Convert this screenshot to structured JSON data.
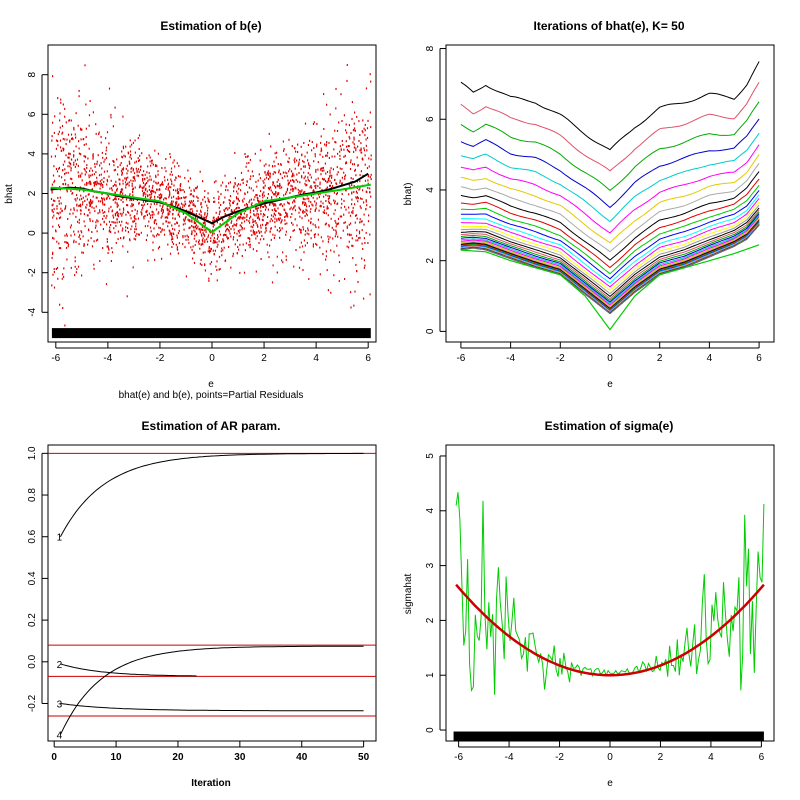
{
  "chart_data": [
    {
      "type": "scatter",
      "title": "Estimation of b(e)",
      "xlabel": "e",
      "ylabel": "bhat",
      "subtitle": "bhat(e) and b(e), points=Partial Residuals",
      "xlim": [
        -6.3,
        6.3
      ],
      "ylim": [
        -5.5,
        9.5
      ],
      "xticks": [
        -6,
        -4,
        -2,
        0,
        2,
        4,
        6
      ],
      "yticks": [
        -4,
        -2,
        0,
        2,
        4,
        6,
        8
      ],
      "points_color": "#e00000",
      "curves": [
        {
          "name": "bhat(e)",
          "color": "#000000",
          "x": [
            -6.2,
            -5.5,
            -5,
            -4.5,
            -4,
            -3.5,
            -3,
            -2.5,
            -2,
            -1.5,
            -1,
            -0.5,
            0,
            0.5,
            1,
            1.5,
            2,
            2.5,
            3,
            3.5,
            4,
            4.5,
            5,
            5.5,
            6
          ],
          "y": [
            2.2,
            2.3,
            2.25,
            2.1,
            2.0,
            1.85,
            1.75,
            1.65,
            1.55,
            1.35,
            1.1,
            0.8,
            0.5,
            0.85,
            1.1,
            1.3,
            1.5,
            1.65,
            1.8,
            1.95,
            2.05,
            2.2,
            2.4,
            2.6,
            3.0
          ]
        },
        {
          "name": "b(e)",
          "color": "#00cc00",
          "x": [
            -6.2,
            -5,
            -4,
            -3,
            -2,
            -1,
            0,
            1,
            2,
            3,
            4,
            5,
            6.1
          ],
          "y": [
            2.3,
            2.2,
            2.0,
            1.8,
            1.6,
            1.0,
            0.05,
            1.0,
            1.6,
            1.8,
            2.0,
            2.2,
            2.45
          ]
        }
      ],
      "rug_range": [
        -6.15,
        6.1
      ]
    },
    {
      "type": "line",
      "title": "Iterations of bhat(e), K= 50",
      "xlabel": "e",
      "ylabel": "bhat)",
      "xlim": [
        -6.6,
        6.6
      ],
      "ylim": [
        -0.3,
        8.1
      ],
      "xticks": [
        -6,
        -4,
        -2,
        0,
        2,
        4,
        6
      ],
      "yticks": [
        0,
        2,
        4,
        6,
        8
      ],
      "iterations": 50,
      "first_iteration": {
        "x": [
          -6,
          -5.5,
          -5,
          -4,
          -3,
          -2,
          -1,
          0,
          1,
          2,
          3,
          4,
          5,
          5.5,
          6
        ],
        "y": [
          7.0,
          6.75,
          7.0,
          6.6,
          6.5,
          6.1,
          5.6,
          5.1,
          5.8,
          6.3,
          6.5,
          6.7,
          6.6,
          7.0,
          7.6
        ]
      },
      "limit_curve": {
        "x": [
          -6,
          -5.5,
          -5,
          -4,
          -3,
          -2,
          -1,
          0,
          1,
          2,
          3,
          4,
          5,
          5.5,
          6
        ],
        "y": [
          2.3,
          2.35,
          2.3,
          2.05,
          1.8,
          1.6,
          1.05,
          0.5,
          1.1,
          1.6,
          1.8,
          2.1,
          2.4,
          2.6,
          3.0
        ]
      },
      "true_curve": {
        "color": "#00cc00",
        "x": [
          -6,
          -5,
          -4,
          -3,
          -2,
          -1,
          0,
          1,
          2,
          3,
          4,
          5,
          6
        ],
        "y": [
          2.3,
          2.25,
          2.0,
          1.8,
          1.6,
          1.0,
          0.05,
          1.0,
          1.6,
          1.8,
          2.0,
          2.2,
          2.45
        ]
      },
      "palette": [
        "#000000",
        "#df536b",
        "#00aa00",
        "#0000cc",
        "#00cccc",
        "#ff00ff",
        "#e6c800",
        "#aaaaaa",
        "#000000",
        "#e00000",
        "#00cc00",
        "#0000ff",
        "#00ffff",
        "#ff00ff",
        "#ffff00",
        "#999999"
      ]
    },
    {
      "type": "line",
      "title": "Estimation of AR param.",
      "xlabel": "Iteration",
      "ylabel": "",
      "xlim": [
        -1,
        52
      ],
      "ylim": [
        -0.38,
        1.04
      ],
      "xticks": [
        0,
        10,
        20,
        30,
        40,
        50
      ],
      "yticks": [
        -0.2,
        0.0,
        0.2,
        0.4,
        0.6,
        0.8,
        1.0
      ],
      "hlines": [
        1.0,
        0.08,
        -0.07,
        -0.26
      ],
      "hline_color": "#cc0000",
      "series": [
        {
          "name": "1",
          "start": 0.6,
          "end": 1.0,
          "rate": 0.14,
          "until": 50
        },
        {
          "name": "2",
          "start": -0.01,
          "end": -0.07,
          "rate": 0.15,
          "until": 23
        },
        {
          "name": "3",
          "start": -0.2,
          "end": -0.235,
          "rate": 0.12,
          "until": 50
        },
        {
          "name": "4",
          "start": -0.35,
          "end": 0.075,
          "rate": 0.15,
          "until": 50
        }
      ]
    },
    {
      "type": "line",
      "title": "Estimation of sigma(e)",
      "xlabel": "e",
      "ylabel": "sigmahat",
      "xlim": [
        -6.5,
        6.5
      ],
      "ylim": [
        -0.2,
        5.2
      ],
      "xticks": [
        -6,
        -4,
        -2,
        0,
        2,
        4,
        6
      ],
      "yticks": [
        0,
        1,
        2,
        3,
        4,
        5
      ],
      "fit_curve": {
        "name": "sigma(e)",
        "color": "#cc0000",
        "formula": "1 + 0.0444*e^2",
        "x_range": [
          -6.1,
          6.1
        ]
      },
      "noisy_curve": {
        "name": "sigmahat(e)",
        "color": "#00cc00",
        "x_range": [
          -6.1,
          6.1
        ]
      },
      "rug_range": [
        -6.2,
        6.1
      ]
    }
  ]
}
